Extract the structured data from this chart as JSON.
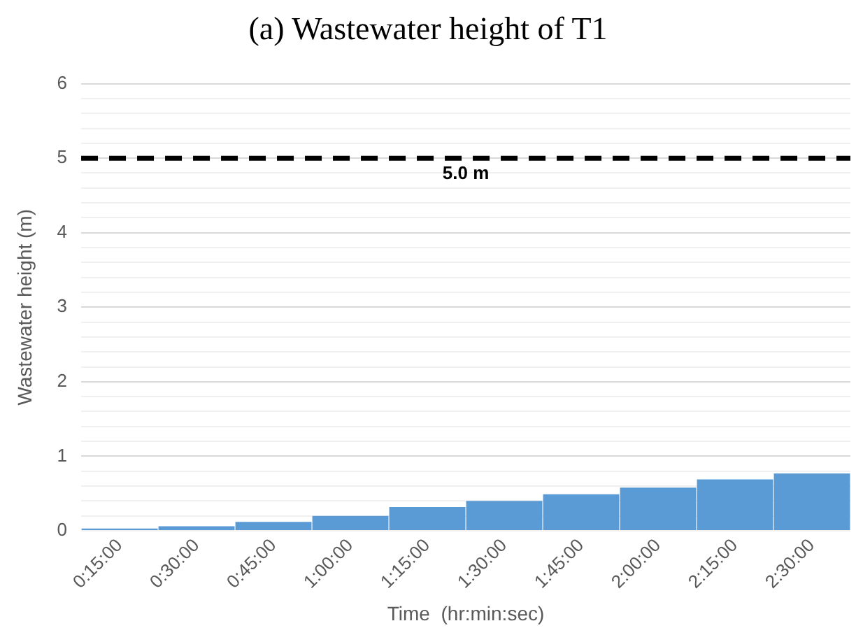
{
  "chart_data": {
    "type": "bar",
    "title": "(a)  Wastewater height of T1",
    "xlabel": "Time  (hr:min:sec)",
    "ylabel": "Wastewater height (m)",
    "categories": [
      "0:15:00",
      "0:30:00",
      "0:45:00",
      "1:00:00",
      "1:15:00",
      "1:30:00",
      "1:45:00",
      "2:00:00",
      "2:15:00",
      "2:30:00"
    ],
    "values": [
      0.03,
      0.06,
      0.12,
      0.2,
      0.32,
      0.4,
      0.49,
      0.58,
      0.69,
      0.77
    ],
    "color": "#5b9bd5",
    "ylim": [
      0,
      6
    ],
    "yticks": [
      0,
      {
        "value": 0.2,
        "label": null
      },
      {
        "value": 0.4,
        "label": null
      },
      {
        "value": 0.6,
        "label": null
      },
      {
        "value": 0.8,
        "label": null
      },
      1,
      {
        "value": 1.2,
        "label": null
      },
      {
        "value": 1.4,
        "label": null
      },
      {
        "value": 1.6,
        "label": null
      },
      {
        "value": 1.8,
        "label": null
      },
      2,
      {
        "value": 2.2,
        "label": null
      },
      {
        "value": 2.4,
        "label": null
      },
      {
        "value": 2.6,
        "label": null
      },
      {
        "value": 2.8,
        "label": null
      },
      3,
      {
        "value": 3.2,
        "label": null
      },
      {
        "value": 3.4,
        "label": null
      },
      {
        "value": 3.6,
        "label": null
      },
      {
        "value": 3.8,
        "label": null
      },
      4,
      {
        "value": 4.2,
        "label": null
      },
      {
        "value": 4.4,
        "label": null
      },
      {
        "value": 4.6,
        "label": null
      },
      {
        "value": 4.8,
        "label": null
      },
      5,
      {
        "value": 5.2,
        "label": null
      },
      {
        "value": 5.4,
        "label": null
      },
      {
        "value": 5.6,
        "label": null
      },
      {
        "value": 5.8,
        "label": null
      },
      6
    ],
    "grid": "y",
    "legend": false,
    "ref_lines": [
      {
        "axis": "y",
        "value": 5,
        "label": "5.0 m",
        "color": "#000000",
        "line_style": "dashed"
      }
    ]
  }
}
